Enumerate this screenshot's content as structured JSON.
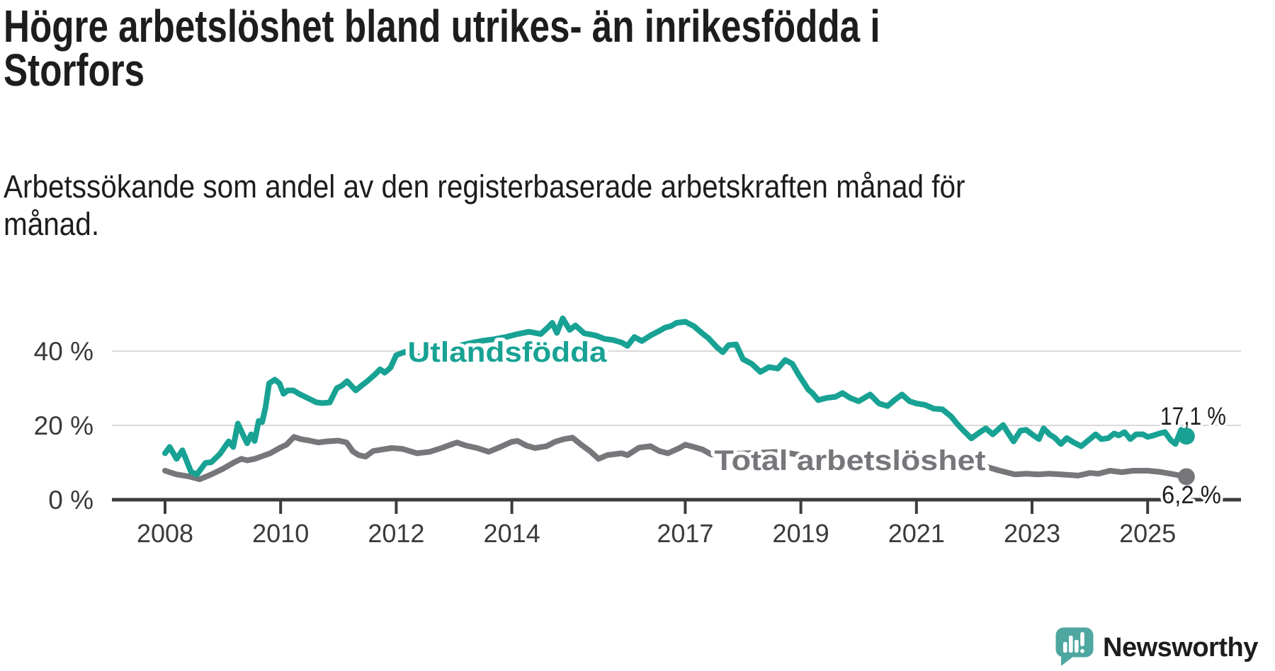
{
  "header": {
    "title_lines": [
      "Högre arbetslöshet bland utrikes- än inrikesfödda i",
      "Storfors"
    ],
    "subtitle_lines": [
      "Arbetssökande som andel av den registerbaserade arbetskraften månad för",
      "månad."
    ]
  },
  "footer": {
    "brand": "Newsworthy"
  },
  "colors": {
    "teal_line": "#18A294",
    "gray_line": "#76767B",
    "axis": "#3C3C3C",
    "grid": "#D9D9D9",
    "tick_text": "#3A3A3A",
    "value_text": "#1D1D1D",
    "logo_bubble": "#4FA7A1",
    "logo_text": "#3E9E9A",
    "background": "#FFFFFF"
  },
  "chart_data": {
    "type": "line",
    "title": "Högre arbetslöshet bland utrikes- än inrikesfödda i Storfors",
    "subtitle": "Arbetssökande som andel av den registerbaserade arbetskraften månad för månad.",
    "unit": "%",
    "grid": "horizontal-only",
    "x_axis": {
      "tick_years": [
        2008,
        2010,
        2012,
        2014,
        2017,
        2019,
        2021,
        2023,
        2025
      ],
      "tick_labels": [
        "2008",
        "2010",
        "2012",
        "2014",
        "2017",
        "2019",
        "2021",
        "2023",
        "2025"
      ],
      "range": [
        2007.1,
        2026.5
      ]
    },
    "y_axis": {
      "ticks": [
        0,
        20,
        40
      ],
      "tick_labels": [
        "0 %",
        "20 %",
        "40 %"
      ],
      "range": [
        0,
        52
      ]
    },
    "series": [
      {
        "name": "Utlandsfödda",
        "color": "#18A294",
        "end_label": "17,1 %",
        "end_value": 17.1,
        "points": [
          [
            2008.0,
            12.5
          ],
          [
            2008.08,
            14.2
          ],
          [
            2008.2,
            11.0
          ],
          [
            2008.3,
            13.3
          ],
          [
            2008.45,
            7.5
          ],
          [
            2008.55,
            6.8
          ],
          [
            2008.7,
            9.9
          ],
          [
            2008.8,
            10.1
          ],
          [
            2008.95,
            12.3
          ],
          [
            2009.1,
            15.7
          ],
          [
            2009.18,
            14.2
          ],
          [
            2009.26,
            20.5
          ],
          [
            2009.36,
            17.1
          ],
          [
            2009.42,
            15.2
          ],
          [
            2009.49,
            17.6
          ],
          [
            2009.55,
            15.8
          ],
          [
            2009.62,
            21.2
          ],
          [
            2009.68,
            20.9
          ],
          [
            2009.74,
            25.0
          ],
          [
            2009.8,
            31.3
          ],
          [
            2009.9,
            32.3
          ],
          [
            2009.98,
            31.3
          ],
          [
            2010.05,
            28.5
          ],
          [
            2010.12,
            29.4
          ],
          [
            2010.22,
            29.4
          ],
          [
            2010.32,
            28.5
          ],
          [
            2010.5,
            27.1
          ],
          [
            2010.62,
            26.2
          ],
          [
            2010.72,
            26.0
          ],
          [
            2010.85,
            26.2
          ],
          [
            2010.97,
            30.0
          ],
          [
            2011.06,
            30.7
          ],
          [
            2011.15,
            31.9
          ],
          [
            2011.3,
            29.4
          ],
          [
            2011.4,
            30.7
          ],
          [
            2011.5,
            31.9
          ],
          [
            2011.64,
            33.8
          ],
          [
            2011.72,
            35.1
          ],
          [
            2011.8,
            34.2
          ],
          [
            2011.9,
            35.5
          ],
          [
            2012.0,
            38.9
          ],
          [
            2012.15,
            39.8
          ],
          [
            2012.3,
            38.2
          ],
          [
            2012.5,
            39.0
          ],
          [
            2012.7,
            40.0
          ],
          [
            2012.9,
            40.8
          ],
          [
            2013.1,
            41.5
          ],
          [
            2013.3,
            42.2
          ],
          [
            2013.5,
            42.8
          ],
          [
            2013.7,
            43.2
          ],
          [
            2013.9,
            43.8
          ],
          [
            2014.1,
            44.6
          ],
          [
            2014.3,
            45.2
          ],
          [
            2014.5,
            44.6
          ],
          [
            2014.62,
            46.3
          ],
          [
            2014.7,
            47.6
          ],
          [
            2014.78,
            44.9
          ],
          [
            2014.88,
            48.8
          ],
          [
            2015.0,
            45.7
          ],
          [
            2015.1,
            46.9
          ],
          [
            2015.25,
            44.8
          ],
          [
            2015.45,
            44.2
          ],
          [
            2015.6,
            43.3
          ],
          [
            2015.75,
            43.0
          ],
          [
            2015.9,
            42.3
          ],
          [
            2016.0,
            41.4
          ],
          [
            2016.12,
            43.8
          ],
          [
            2016.25,
            42.7
          ],
          [
            2016.4,
            44.2
          ],
          [
            2016.55,
            45.4
          ],
          [
            2016.65,
            46.3
          ],
          [
            2016.75,
            46.7
          ],
          [
            2016.85,
            47.6
          ],
          [
            2017.0,
            47.9
          ],
          [
            2017.15,
            46.7
          ],
          [
            2017.3,
            44.7
          ],
          [
            2017.4,
            43.5
          ],
          [
            2017.55,
            41.0
          ],
          [
            2017.65,
            39.7
          ],
          [
            2017.75,
            41.6
          ],
          [
            2017.88,
            41.8
          ],
          [
            2018.0,
            37.8
          ],
          [
            2018.15,
            36.6
          ],
          [
            2018.3,
            34.4
          ],
          [
            2018.45,
            35.7
          ],
          [
            2018.6,
            35.3
          ],
          [
            2018.73,
            37.6
          ],
          [
            2018.85,
            36.6
          ],
          [
            2018.97,
            33.4
          ],
          [
            2019.05,
            31.5
          ],
          [
            2019.13,
            29.6
          ],
          [
            2019.2,
            28.7
          ],
          [
            2019.3,
            26.8
          ],
          [
            2019.45,
            27.4
          ],
          [
            2019.6,
            27.7
          ],
          [
            2019.72,
            28.7
          ],
          [
            2019.85,
            27.4
          ],
          [
            2020.0,
            26.5
          ],
          [
            2020.1,
            27.4
          ],
          [
            2020.2,
            28.3
          ],
          [
            2020.35,
            25.9
          ],
          [
            2020.5,
            25.2
          ],
          [
            2020.62,
            26.8
          ],
          [
            2020.75,
            28.3
          ],
          [
            2020.88,
            26.5
          ],
          [
            2021.0,
            25.9
          ],
          [
            2021.15,
            25.5
          ],
          [
            2021.3,
            24.5
          ],
          [
            2021.45,
            24.3
          ],
          [
            2021.6,
            22.4
          ],
          [
            2021.7,
            20.5
          ],
          [
            2021.8,
            18.8
          ],
          [
            2021.95,
            16.5
          ],
          [
            2022.1,
            18.2
          ],
          [
            2022.2,
            19.2
          ],
          [
            2022.32,
            17.6
          ],
          [
            2022.5,
            20.1
          ],
          [
            2022.6,
            17.6
          ],
          [
            2022.68,
            15.7
          ],
          [
            2022.8,
            18.6
          ],
          [
            2022.9,
            18.8
          ],
          [
            2023.0,
            17.6
          ],
          [
            2023.12,
            16.3
          ],
          [
            2023.2,
            19.2
          ],
          [
            2023.3,
            17.6
          ],
          [
            2023.4,
            16.6
          ],
          [
            2023.5,
            15.0
          ],
          [
            2023.6,
            16.6
          ],
          [
            2023.72,
            15.4
          ],
          [
            2023.85,
            14.4
          ],
          [
            2024.0,
            16.3
          ],
          [
            2024.1,
            17.6
          ],
          [
            2024.2,
            16.3
          ],
          [
            2024.32,
            16.6
          ],
          [
            2024.42,
            17.8
          ],
          [
            2024.5,
            17.3
          ],
          [
            2024.6,
            18.2
          ],
          [
            2024.7,
            16.3
          ],
          [
            2024.8,
            17.6
          ],
          [
            2024.92,
            17.6
          ],
          [
            2025.0,
            16.9
          ],
          [
            2025.1,
            17.3
          ],
          [
            2025.2,
            17.8
          ],
          [
            2025.3,
            18.2
          ],
          [
            2025.4,
            16.0
          ],
          [
            2025.48,
            15.0
          ],
          [
            2025.58,
            18.8
          ],
          [
            2025.67,
            17.1
          ]
        ]
      },
      {
        "name": "Total arbetslöshet",
        "color": "#76767B",
        "end_label": "6,2 %",
        "end_value": 6.2,
        "points": [
          [
            2008.0,
            7.8
          ],
          [
            2008.2,
            6.8
          ],
          [
            2008.4,
            6.3
          ],
          [
            2008.6,
            5.5
          ],
          [
            2008.8,
            6.8
          ],
          [
            2009.0,
            8.3
          ],
          [
            2009.2,
            10.1
          ],
          [
            2009.32,
            11.0
          ],
          [
            2009.42,
            10.6
          ],
          [
            2009.55,
            11.0
          ],
          [
            2009.66,
            11.6
          ],
          [
            2009.82,
            12.5
          ],
          [
            2009.98,
            13.9
          ],
          [
            2010.1,
            14.8
          ],
          [
            2010.23,
            16.9
          ],
          [
            2010.35,
            16.3
          ],
          [
            2010.5,
            15.9
          ],
          [
            2010.65,
            15.4
          ],
          [
            2010.8,
            15.7
          ],
          [
            2011.0,
            15.9
          ],
          [
            2011.14,
            15.4
          ],
          [
            2011.25,
            13.0
          ],
          [
            2011.35,
            12.0
          ],
          [
            2011.47,
            11.6
          ],
          [
            2011.6,
            13.1
          ],
          [
            2011.76,
            13.5
          ],
          [
            2011.92,
            13.9
          ],
          [
            2012.1,
            13.7
          ],
          [
            2012.36,
            12.5
          ],
          [
            2012.58,
            12.9
          ],
          [
            2012.8,
            14.0
          ],
          [
            2013.05,
            15.4
          ],
          [
            2013.2,
            14.6
          ],
          [
            2013.4,
            13.9
          ],
          [
            2013.6,
            12.9
          ],
          [
            2013.8,
            14.2
          ],
          [
            2014.0,
            15.6
          ],
          [
            2014.1,
            15.8
          ],
          [
            2014.25,
            14.6
          ],
          [
            2014.4,
            13.9
          ],
          [
            2014.6,
            14.4
          ],
          [
            2014.75,
            15.6
          ],
          [
            2014.9,
            16.3
          ],
          [
            2015.05,
            16.7
          ],
          [
            2015.2,
            14.8
          ],
          [
            2015.35,
            13.1
          ],
          [
            2015.5,
            11.0
          ],
          [
            2015.65,
            12.0
          ],
          [
            2015.9,
            12.5
          ],
          [
            2016.0,
            12.0
          ],
          [
            2016.2,
            14.0
          ],
          [
            2016.4,
            14.4
          ],
          [
            2016.55,
            13.1
          ],
          [
            2016.7,
            12.5
          ],
          [
            2016.9,
            13.9
          ],
          [
            2017.0,
            14.8
          ],
          [
            2017.15,
            14.2
          ],
          [
            2017.3,
            13.5
          ],
          [
            2017.45,
            12.2
          ],
          [
            2017.8,
            12.3
          ],
          [
            2018.2,
            12.6
          ],
          [
            2018.66,
            12.9
          ],
          [
            2019.0,
            12.0
          ],
          [
            2019.4,
            11.2
          ],
          [
            2019.8,
            10.8
          ],
          [
            2020.2,
            11.5
          ],
          [
            2020.5,
            11.0
          ],
          [
            2020.9,
            10.4
          ],
          [
            2021.3,
            9.8
          ],
          [
            2021.7,
            9.3
          ],
          [
            2022.0,
            8.9
          ],
          [
            2022.25,
            8.7
          ],
          [
            2022.42,
            7.9
          ],
          [
            2022.55,
            7.4
          ],
          [
            2022.7,
            6.8
          ],
          [
            2022.9,
            7.0
          ],
          [
            2023.1,
            6.8
          ],
          [
            2023.3,
            7.0
          ],
          [
            2023.5,
            6.8
          ],
          [
            2023.8,
            6.5
          ],
          [
            2024.0,
            7.2
          ],
          [
            2024.15,
            7.0
          ],
          [
            2024.35,
            7.8
          ],
          [
            2024.55,
            7.4
          ],
          [
            2024.75,
            7.8
          ],
          [
            2025.0,
            7.8
          ],
          [
            2025.2,
            7.5
          ],
          [
            2025.4,
            7.0
          ],
          [
            2025.67,
            6.2
          ]
        ]
      }
    ],
    "legend": "inline-series-labels"
  }
}
